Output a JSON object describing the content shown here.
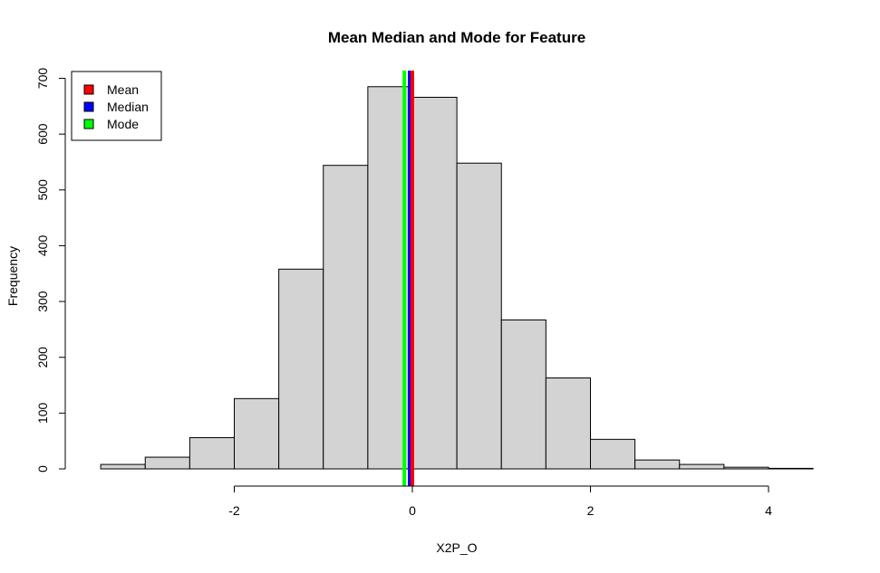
{
  "chart_data": {
    "type": "bar",
    "subtype": "histogram",
    "title": "Mean Median and Mode for Feature",
    "xlabel": "X2P_O",
    "ylabel": "Frequency",
    "xlim": [
      -3.5,
      4.5
    ],
    "ylim": [
      0,
      700
    ],
    "x_ticks": [
      -2,
      0,
      2,
      4
    ],
    "y_ticks": [
      0,
      100,
      200,
      300,
      400,
      500,
      600,
      700
    ],
    "bin_width": 0.5,
    "bins": [
      {
        "x0": -3.5,
        "x1": -3.0,
        "count": 8
      },
      {
        "x0": -3.0,
        "x1": -2.5,
        "count": 21
      },
      {
        "x0": -2.5,
        "x1": -2.0,
        "count": 56
      },
      {
        "x0": -2.0,
        "x1": -1.5,
        "count": 126
      },
      {
        "x0": -1.5,
        "x1": -1.0,
        "count": 358
      },
      {
        "x0": -1.0,
        "x1": -0.5,
        "count": 544
      },
      {
        "x0": -0.5,
        "x1": 0.0,
        "count": 685
      },
      {
        "x0": 0.0,
        "x1": 0.5,
        "count": 666
      },
      {
        "x0": 0.5,
        "x1": 1.0,
        "count": 548
      },
      {
        "x0": 1.0,
        "x1": 1.5,
        "count": 267
      },
      {
        "x0": 1.5,
        "x1": 2.0,
        "count": 163
      },
      {
        "x0": 2.0,
        "x1": 2.5,
        "count": 53
      },
      {
        "x0": 2.5,
        "x1": 3.0,
        "count": 16
      },
      {
        "x0": 3.0,
        "x1": 3.5,
        "count": 8
      },
      {
        "x0": 3.5,
        "x1": 4.0,
        "count": 3
      },
      {
        "x0": 4.0,
        "x1": 4.5,
        "count": 1
      }
    ],
    "bar_fill": "#d3d3d3",
    "reference_lines": [
      {
        "name": "Mode",
        "value": -0.09,
        "color": "#00ff00"
      },
      {
        "name": "Median",
        "value": -0.03,
        "color": "#0000ff"
      },
      {
        "name": "Mean",
        "value": 0.0,
        "color": "#ff0000"
      }
    ],
    "legend": {
      "position": "top-left",
      "entries": [
        {
          "label": "Mean",
          "color": "#ff0000"
        },
        {
          "label": "Median",
          "color": "#0000ff"
        },
        {
          "label": "Mode",
          "color": "#00ff00"
        }
      ]
    },
    "grid": false
  }
}
